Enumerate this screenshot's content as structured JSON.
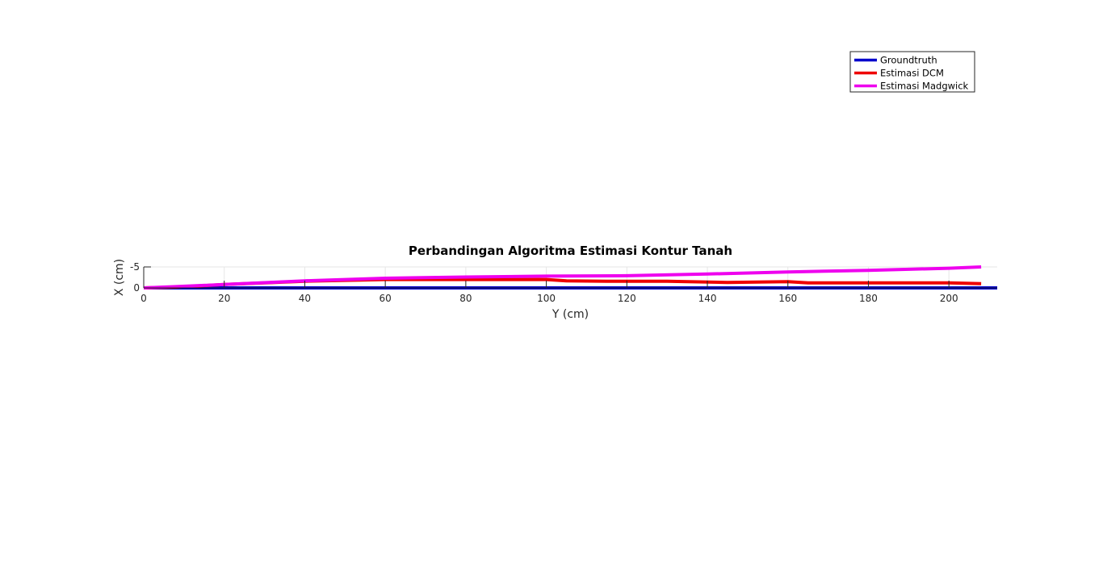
{
  "chart_data": {
    "type": "line",
    "title": "Perbandingan Algoritma Estimasi Kontur Tanah",
    "xlabel": "Y (cm)",
    "ylabel": "X (cm)",
    "xlim": [
      0,
      212
    ],
    "ylim": [
      -5,
      0
    ],
    "y_axis_reversed": true,
    "xticks": [
      0,
      20,
      40,
      60,
      80,
      100,
      120,
      140,
      160,
      180,
      200
    ],
    "yticks": [
      -5,
      0
    ],
    "ytick_labels": [
      "-5",
      "0"
    ],
    "grid": true,
    "legend_position": "top-right",
    "series": [
      {
        "name": "Groundtruth",
        "color": "#0000cc",
        "x": [
          0,
          212
        ],
        "y": [
          0,
          0
        ]
      },
      {
        "name": "Estimasi DCM",
        "color": "#ee0000",
        "x": [
          0,
          8,
          20,
          40,
          60,
          80,
          100,
          105,
          115,
          130,
          145,
          160,
          165,
          180,
          200,
          208
        ],
        "y": [
          0,
          -0.2,
          -0.8,
          -1.6,
          -2.0,
          -2.0,
          -2.0,
          -1.7,
          -1.6,
          -1.6,
          -1.3,
          -1.5,
          -1.2,
          -1.2,
          -1.2,
          -1.0
        ]
      },
      {
        "name": "Estimasi Madgwick",
        "color": "#ee00ee",
        "x": [
          0,
          8,
          20,
          40,
          60,
          80,
          100,
          120,
          140,
          160,
          180,
          200,
          208
        ],
        "y": [
          0,
          -0.3,
          -0.8,
          -1.7,
          -2.3,
          -2.6,
          -2.8,
          -2.9,
          -3.3,
          -3.8,
          -4.2,
          -4.7,
          -5.0
        ]
      }
    ]
  }
}
